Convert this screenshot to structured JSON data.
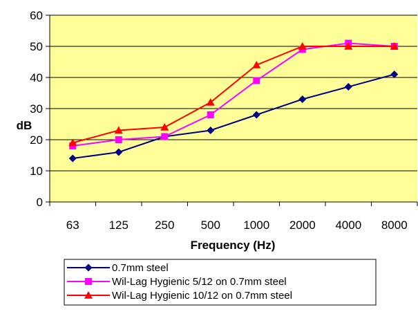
{
  "chart_data": {
    "type": "line",
    "title": "",
    "xlabel": "Frequency (Hz)",
    "ylabel": "dB",
    "categories": [
      "63",
      "125",
      "250",
      "500",
      "1000",
      "2000",
      "4000",
      "8000"
    ],
    "ylim": [
      0,
      60
    ],
    "yticks": [
      0,
      10,
      20,
      30,
      40,
      50,
      60
    ],
    "grid": "horizontal",
    "legend_position": "bottom",
    "plot_background": "#FFFF99",
    "series": [
      {
        "name": "0.7mm steel",
        "color": "#000080",
        "marker": "diamond",
        "values": [
          14,
          16,
          21,
          23,
          28,
          33,
          37,
          41
        ]
      },
      {
        "name": "Wil-Lag Hygienic 5/12 on 0.7mm steel",
        "color": "#FF00FF",
        "marker": "square",
        "values": [
          18,
          20,
          21,
          28,
          39,
          49,
          51,
          50
        ]
      },
      {
        "name": "Wil-Lag Hygienic 10/12 on 0.7mm steel",
        "color": "#FF0000",
        "marker": "triangle",
        "values": [
          19,
          23,
          24,
          32,
          44,
          50,
          50,
          50
        ]
      }
    ]
  }
}
